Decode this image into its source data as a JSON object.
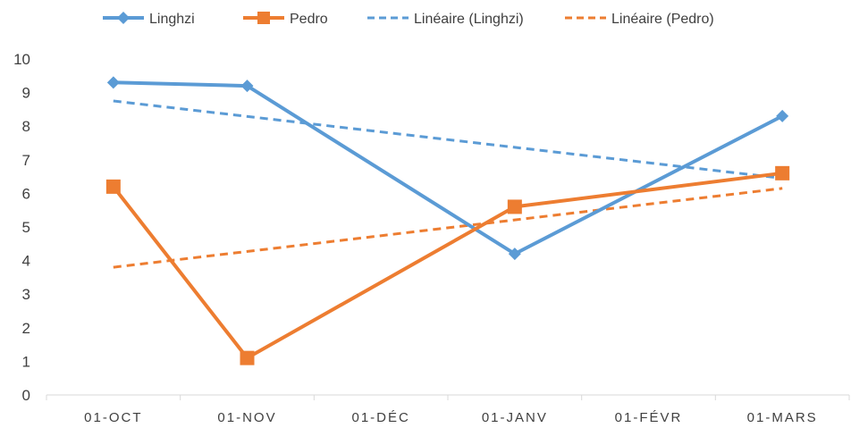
{
  "chart_data": {
    "type": "line",
    "categories": [
      "01-OCT",
      "01-NOV",
      "01-DÉC",
      "01-JANV",
      "01-FÉVR",
      "01-MARS"
    ],
    "ylim": [
      0,
      10
    ],
    "yticks": [
      "0",
      "1",
      "2",
      "3",
      "4",
      "5",
      "6",
      "7",
      "8",
      "9",
      "10"
    ],
    "grid": false,
    "legend_position": "top",
    "series": [
      {
        "name": "Linghzi",
        "color": "#5B9BD5",
        "marker": "diamond",
        "style": "solid",
        "points": [
          {
            "x": "01-OCT",
            "y": 9.3
          },
          {
            "x": "01-NOV",
            "y": 9.2
          },
          {
            "x": "01-JANV",
            "y": 4.2
          },
          {
            "x": "01-MARS",
            "y": 8.3
          }
        ]
      },
      {
        "name": "Pedro",
        "color": "#ED7D31",
        "marker": "square",
        "style": "solid",
        "points": [
          {
            "x": "01-OCT",
            "y": 6.2
          },
          {
            "x": "01-NOV",
            "y": 1.1
          },
          {
            "x": "01-JANV",
            "y": 5.6
          },
          {
            "x": "01-MARS",
            "y": 6.6
          }
        ]
      },
      {
        "name": "Linéaire (Linghzi)",
        "color": "#5B9BD5",
        "marker": "none",
        "style": "dashed",
        "points": [
          {
            "x": "01-OCT",
            "y": 8.75
          },
          {
            "x": "01-MARS",
            "y": 6.45
          }
        ]
      },
      {
        "name": "Linéaire (Pedro)",
        "color": "#ED7D31",
        "marker": "none",
        "style": "dashed",
        "points": [
          {
            "x": "01-OCT",
            "y": 3.8
          },
          {
            "x": "01-MARS",
            "y": 6.15
          }
        ]
      }
    ]
  }
}
